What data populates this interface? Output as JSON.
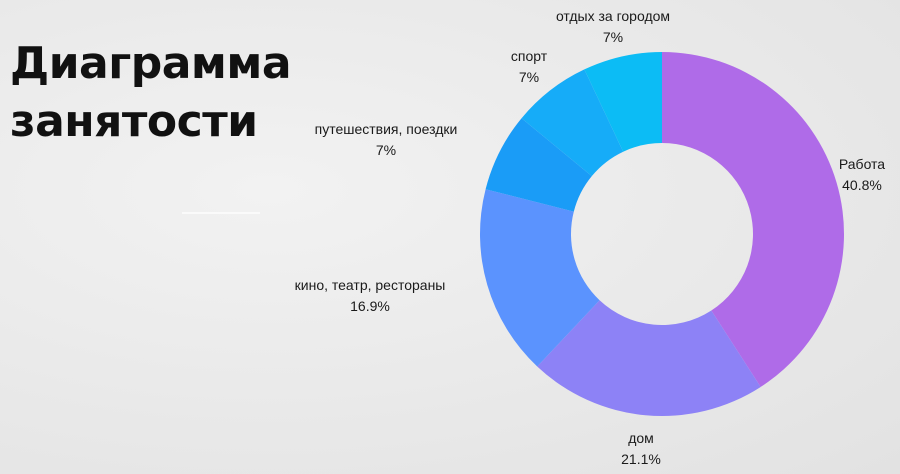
{
  "title": [
    "Диаграмма",
    "занятости"
  ],
  "chart_data": {
    "type": "pie",
    "donut": true,
    "title": "Диаграмма занятости",
    "categories": [
      "Работа",
      "дом",
      "кино, театр, рестораны",
      "путешествия, поездки",
      "спорт",
      "отдых за городом"
    ],
    "values": [
      40.8,
      21.1,
      16.9,
      7,
      7,
      7
    ],
    "value_labels": [
      "40.8%",
      "21.1%",
      "16.9%",
      "7%",
      "7%",
      "7%"
    ],
    "colors": [
      "#af6be8",
      "#8d82f6",
      "#5b93fe",
      "#1a9cf7",
      "#16acf8",
      "#0cbcf5"
    ],
    "legend": "none"
  }
}
